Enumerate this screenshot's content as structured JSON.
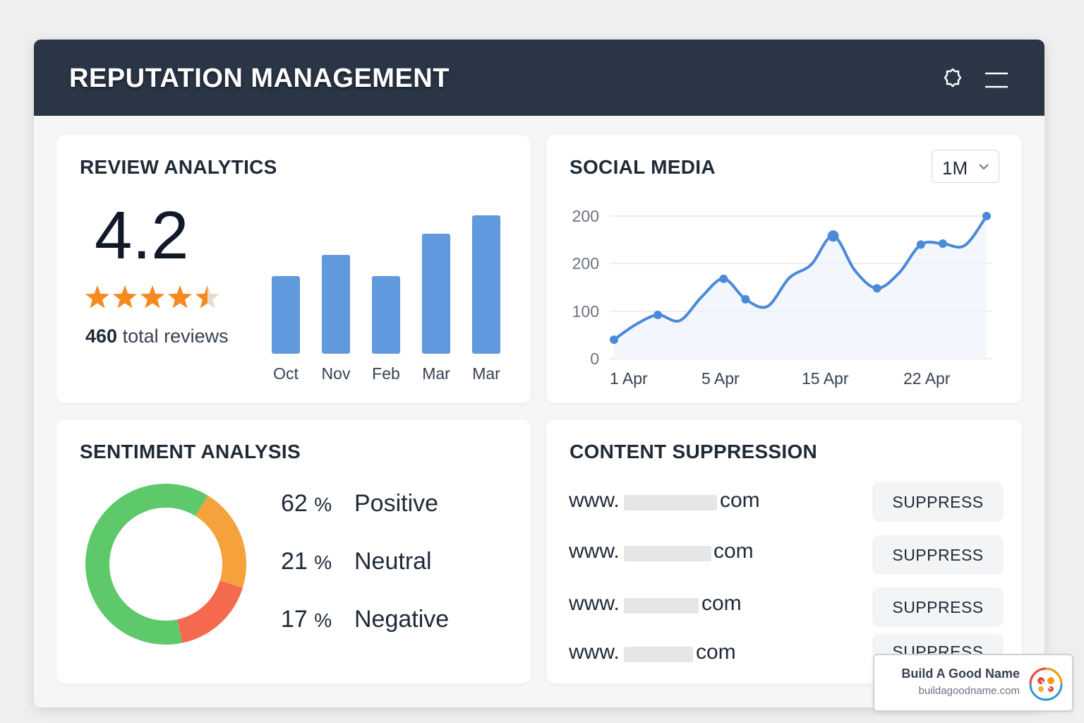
{
  "header": {
    "title": "REPUTATION MANAGEMENT",
    "icons": [
      "settings-icon",
      "menu-icon"
    ]
  },
  "review_analytics": {
    "title": "REVIEW ANALYTICS",
    "rating": "4.2",
    "stars_value": 4.5,
    "stars_max": 5,
    "total_count": "460",
    "total_label": "total reviews",
    "chart_data": {
      "type": "bar",
      "categories": [
        "Oct",
        "Nov",
        "Feb",
        "Mar",
        "Mar"
      ],
      "values": [
        55,
        70,
        55,
        85,
        98
      ],
      "ylim": [
        0,
        100
      ],
      "grid": false,
      "color": "#6099dd"
    }
  },
  "social_media": {
    "title": "SOCIAL MEDIA",
    "range_selected": "1M",
    "chart_data": {
      "type": "line",
      "x_labels": [
        "1 Apr",
        "5 Apr",
        "15 Apr",
        "22 Apr"
      ],
      "y_ticks": [
        "0",
        "100",
        "200",
        "200"
      ],
      "grid": true,
      "color": "#4a8ad8",
      "series": [
        {
          "values": [
            {
              "x": 1,
              "y": 40
            },
            {
              "x": 2,
              "y": 72
            },
            {
              "x": 3,
              "y": 92
            },
            {
              "x": 4,
              "y": 80
            },
            {
              "x": 5,
              "y": 130
            },
            {
              "x": 6,
              "y": 168
            },
            {
              "x": 7,
              "y": 125
            },
            {
              "x": 8,
              "y": 110
            },
            {
              "x": 9,
              "y": 170
            },
            {
              "x": 10,
              "y": 198
            },
            {
              "x": 11,
              "y": 258
            },
            {
              "x": 12,
              "y": 185
            },
            {
              "x": 13,
              "y": 148
            },
            {
              "x": 14,
              "y": 180
            },
            {
              "x": 15,
              "y": 240
            },
            {
              "x": 16,
              "y": 242
            },
            {
              "x": 17,
              "y": 238
            },
            {
              "x": 18,
              "y": 300
            }
          ]
        }
      ]
    }
  },
  "sentiment": {
    "title": "SENTIMENT ANALYSIS",
    "chart_data": {
      "type": "pie",
      "donut": true,
      "labels": [
        "Positive",
        "Neutral",
        "Negative"
      ],
      "values": [
        62,
        21,
        17
      ],
      "colors": [
        "#5ec96b",
        "#f5a23d",
        "#f56a4f"
      ]
    },
    "items": [
      {
        "pct": "62",
        "unit": "%",
        "label": "Positive"
      },
      {
        "pct": "21",
        "unit": "%",
        "label": "Neutral"
      },
      {
        "pct": "17",
        "unit": "%",
        "label": "Negative"
      }
    ]
  },
  "content_suppression": {
    "title": "CONTENT SUPPRESSION",
    "rows": [
      {
        "prefix": "www.",
        "suffix": "com",
        "button": "SUPPRESS"
      },
      {
        "prefix": "www.",
        "suffix": "com",
        "button": "SUPPRESS"
      },
      {
        "prefix": "www.",
        "suffix": "com",
        "button": "SUPPRESS"
      },
      {
        "prefix": "www.",
        "suffix": "com",
        "button": "SUPPRESS"
      }
    ]
  },
  "brand": {
    "name": "Build A Good Name",
    "url": "buildagoodname.com"
  }
}
